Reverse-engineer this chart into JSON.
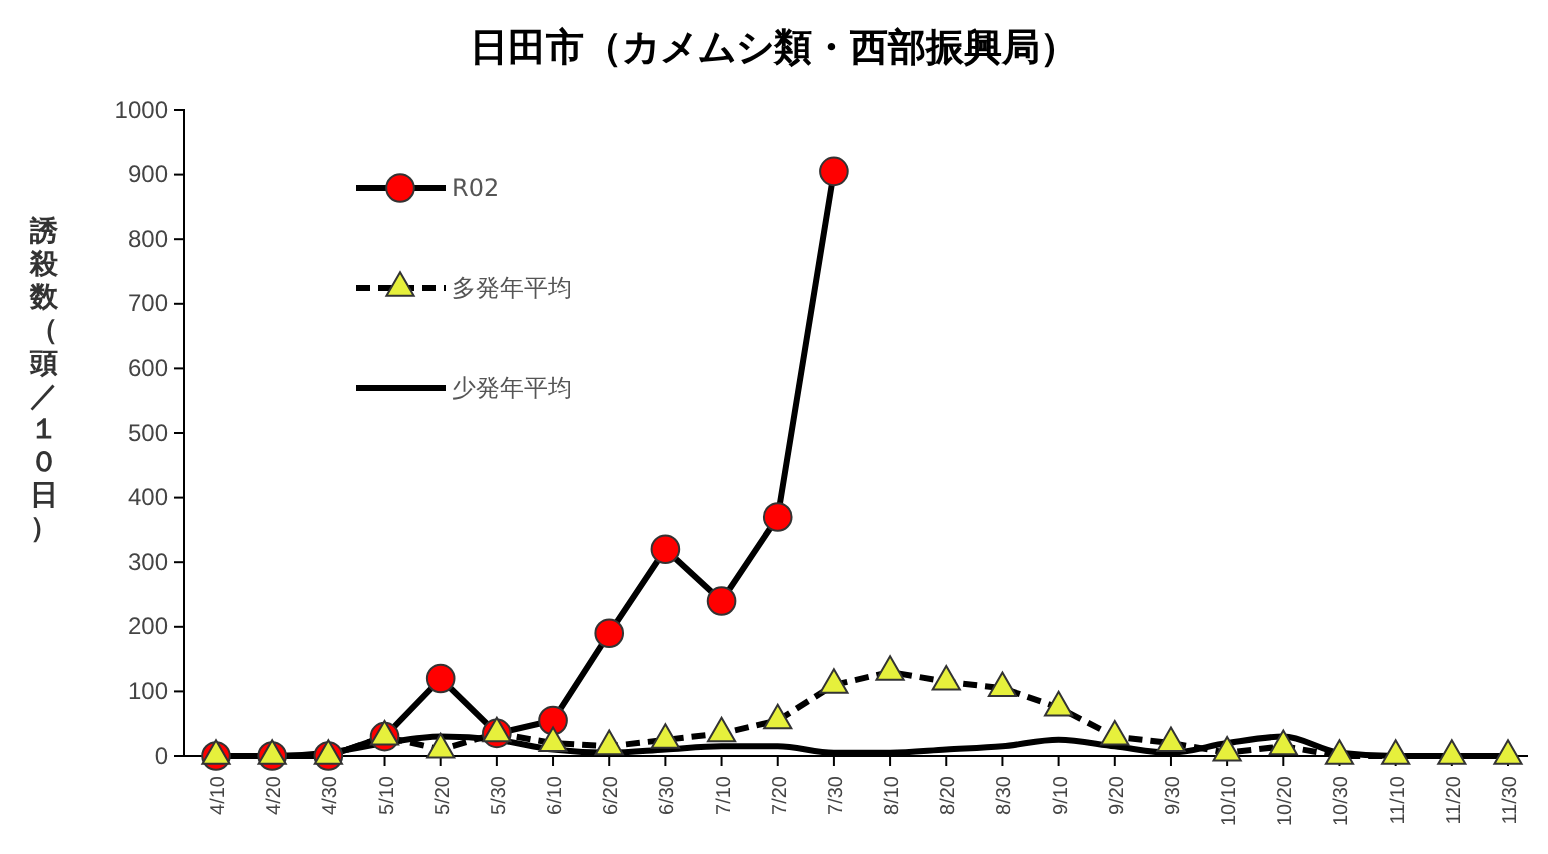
{
  "chart_data": {
    "type": "line",
    "title": "日田市（カメムシ類・西部振興局）",
    "ylabel": "誘殺数（頭／１０日）",
    "categories": [
      "4/10",
      "4/20",
      "4/30",
      "5/10",
      "5/20",
      "5/30",
      "6/10",
      "6/20",
      "6/30",
      "7/10",
      "7/20",
      "7/30",
      "8/10",
      "8/20",
      "8/30",
      "9/10",
      "9/20",
      "9/30",
      "10/10",
      "10/20",
      "10/30",
      "11/10",
      "11/20",
      "11/30"
    ],
    "series": [
      {
        "name": "R02",
        "color": "#ff0000",
        "marker": "circle",
        "line_style": "solid",
        "values": [
          0,
          0,
          0,
          30,
          120,
          35,
          55,
          190,
          320,
          240,
          370,
          905,
          null,
          null,
          null,
          null,
          null,
          null,
          null,
          null,
          null,
          null,
          null,
          null
        ]
      },
      {
        "name": "多発年平均",
        "color": "#e6f03c",
        "marker": "triangle",
        "line_style": "dashed",
        "values": [
          0,
          0,
          0,
          30,
          10,
          35,
          20,
          15,
          25,
          35,
          55,
          110,
          130,
          115,
          105,
          75,
          30,
          20,
          5,
          15,
          0,
          0,
          0,
          0
        ]
      },
      {
        "name": "少発年平均",
        "color": "#000000",
        "marker": "none",
        "line_style": "solid",
        "values": [
          0,
          0,
          5,
          20,
          30,
          25,
          10,
          5,
          10,
          15,
          15,
          5,
          5,
          10,
          15,
          25,
          15,
          5,
          20,
          30,
          5,
          0,
          0,
          0
        ]
      }
    ],
    "ylim": [
      0,
      1000
    ],
    "yticks": [
      0,
      100,
      200,
      300,
      400,
      500,
      600,
      700,
      800,
      900,
      1000
    ],
    "grid": false,
    "legend": "top left"
  }
}
